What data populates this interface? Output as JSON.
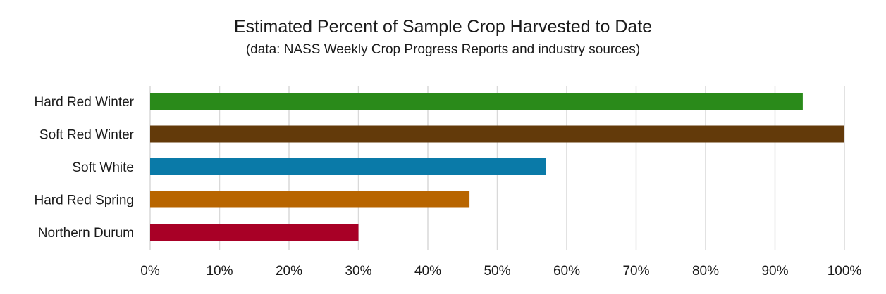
{
  "chart_data": {
    "type": "bar",
    "orientation": "horizontal",
    "title": "Estimated Percent of Sample Crop Harvested to Date",
    "subtitle": "(data: NASS Weekly Crop Progress Reports and industry sources)",
    "categories": [
      "Hard Red Winter",
      "Soft Red Winter",
      "Soft White",
      "Hard Red Spring",
      "Northern Durum"
    ],
    "values": [
      94,
      100,
      57,
      46,
      30
    ],
    "colors": [
      "#2a8a1a",
      "#633a0a",
      "#0a7aa8",
      "#b86500",
      "#a80026"
    ],
    "xlim": [
      0,
      100
    ],
    "xticks": [
      0,
      10,
      20,
      30,
      40,
      50,
      60,
      70,
      80,
      90,
      100
    ],
    "xtick_labels": [
      "0%",
      "10%",
      "20%",
      "30%",
      "40%",
      "50%",
      "60%",
      "70%",
      "80%",
      "90%",
      "100%"
    ],
    "grid": "vertical",
    "legend": "none"
  }
}
